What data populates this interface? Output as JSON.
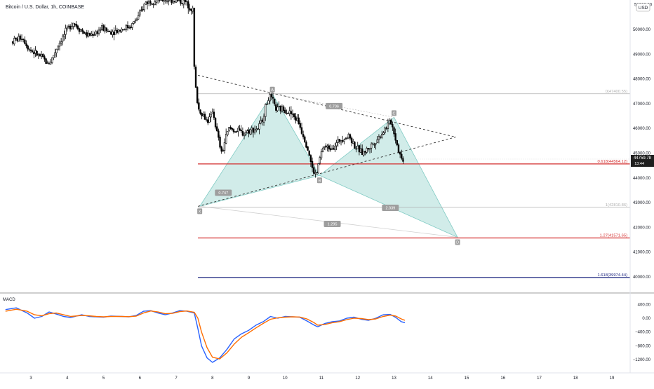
{
  "header": {
    "symbol_title": "Bitcoin / U.S. Dollar, 1h, COINBASE",
    "currency_badge": "USD"
  },
  "indicator": {
    "label": "MACD"
  },
  "colors": {
    "background": "#ffffff",
    "candle": "#000000",
    "pattern_fill": "#b2dfdb",
    "pattern_edge": "#80cbc4",
    "fib_red": "#d32f2f",
    "fib_blue": "#1a237e",
    "fib_gray": "#b0b0b0",
    "macd_line": "#2962ff",
    "signal_line": "#ff6d00",
    "price_badge": "#1f1f1f",
    "point_badge": "#9e9e9e"
  },
  "chart_data": [
    {
      "type": "candlestick",
      "title": "Bitcoin / U.S. Dollar, 1h, COINBASE",
      "x_axis": {
        "ticks": [
          "3",
          "4",
          "5",
          "6",
          "7",
          "8",
          "9",
          "10",
          "11",
          "12",
          "13",
          "14",
          "15",
          "16",
          "17",
          "18",
          "19"
        ]
      },
      "y_axis": {
        "side": "right",
        "ylim": [
          39600,
          51200
        ],
        "ticks": [
          "50000.00",
          "49000.00",
          "48000.00",
          "47000.00",
          "46000.00",
          "45000.00",
          "44000.00",
          "43000.00",
          "42000.00",
          "41000.00",
          "40000.00"
        ],
        "top_partial_label": "51000.00"
      },
      "last_price": {
        "value": "44759.78",
        "countdown": "13:44"
      },
      "series_path": [
        [
          2.5,
          49500
        ],
        [
          2.8,
          49700
        ],
        [
          3.0,
          49200
        ],
        [
          3.2,
          49000
        ],
        [
          3.4,
          48800
        ],
        [
          3.5,
          48600
        ],
        [
          3.6,
          48750
        ],
        [
          3.8,
          49400
        ],
        [
          4.0,
          49900
        ],
        [
          4.2,
          50300
        ],
        [
          4.4,
          50000
        ],
        [
          4.6,
          49750
        ],
        [
          4.8,
          49850
        ],
        [
          5.0,
          50050
        ],
        [
          5.2,
          49900
        ],
        [
          5.4,
          49950
        ],
        [
          5.6,
          50050
        ],
        [
          5.8,
          50150
        ],
        [
          6.0,
          50500
        ],
        [
          6.2,
          51100
        ],
        [
          6.5,
          51200
        ],
        [
          6.9,
          51200
        ],
        [
          7.3,
          51100
        ],
        [
          7.5,
          50800
        ],
        [
          7.55,
          48000
        ],
        [
          7.65,
          46800
        ],
        [
          7.8,
          46500
        ],
        [
          7.9,
          46300
        ],
        [
          8.0,
          46450
        ],
        [
          8.05,
          46800
        ],
        [
          8.1,
          46300
        ],
        [
          8.2,
          45600
        ],
        [
          8.3,
          44950
        ],
        [
          8.4,
          45600
        ],
        [
          8.5,
          46000
        ],
        [
          8.7,
          45900
        ],
        [
          8.9,
          45800
        ],
        [
          9.1,
          45950
        ],
        [
          9.3,
          46000
        ],
        [
          9.4,
          46300
        ],
        [
          9.5,
          46850
        ],
        [
          9.6,
          47300
        ],
        [
          9.7,
          47100
        ],
        [
          9.8,
          46750
        ],
        [
          10.0,
          46800
        ],
        [
          10.2,
          46600
        ],
        [
          10.4,
          46300
        ],
        [
          10.5,
          45900
        ],
        [
          10.6,
          45500
        ],
        [
          10.7,
          45000
        ],
        [
          10.8,
          44300
        ],
        [
          10.9,
          44100
        ],
        [
          11.0,
          44800
        ],
        [
          11.1,
          45300
        ],
        [
          11.2,
          45200
        ],
        [
          11.4,
          45300
        ],
        [
          11.6,
          45600
        ],
        [
          11.8,
          45700
        ],
        [
          12.0,
          45200
        ],
        [
          12.2,
          45000
        ],
        [
          12.4,
          45300
        ],
        [
          12.6,
          45600
        ],
        [
          12.8,
          46000
        ],
        [
          12.95,
          46300
        ],
        [
          13.05,
          45800
        ],
        [
          13.15,
          45200
        ],
        [
          13.25,
          44760
        ]
      ],
      "pattern": {
        "name": "harmonic XABCD",
        "points": [
          {
            "label": "X",
            "date": 7.65,
            "price": 42850
          },
          {
            "label": "A",
            "date": 9.65,
            "price": 47400
          },
          {
            "label": "B",
            "date": 10.95,
            "price": 44100
          },
          {
            "label": "C",
            "date": 13.0,
            "price": 46450
          },
          {
            "label": "D",
            "date": 14.75,
            "price": 41600
          }
        ],
        "ratios": [
          {
            "label": "0.706",
            "date": 11.35,
            "price": 46900
          },
          {
            "label": "0.747",
            "date": 8.3,
            "price": 43400
          },
          {
            "label": "2.039",
            "date": 12.9,
            "price": 42790
          },
          {
            "label": "1.295",
            "date": 11.3,
            "price": 42140
          }
        ]
      },
      "triangle": {
        "upper": [
          [
            7.6,
            48150
          ],
          [
            14.7,
            45650
          ]
        ],
        "lower": [
          [
            7.6,
            42850
          ],
          [
            14.7,
            45650
          ]
        ]
      },
      "fib_levels": [
        {
          "label": "0(47400.55)",
          "price": 47400.55,
          "style": "gray"
        },
        {
          "label": "0.618(44564.12)",
          "price": 44564.12,
          "style": "red"
        },
        {
          "label": "1(42810.86)",
          "price": 42810.86,
          "style": "gray"
        },
        {
          "label": "1.27(41571.65)",
          "price": 41571.65,
          "style": "red"
        },
        {
          "label": "1.618(39974.44)",
          "price": 39974.44,
          "style": "blue"
        }
      ],
      "fib_start_date": 7.6,
      "legend": "none",
      "grid": false
    },
    {
      "type": "line",
      "title": "MACD",
      "y_axis": {
        "ylim": [
          -1300,
          650
        ],
        "ticks": [
          "400.00",
          "0.00",
          "−400.00",
          "−800.00",
          "−1200.00"
        ]
      },
      "series": [
        {
          "name": "MACD",
          "color": "#2962ff",
          "values": [
            [
              2.3,
              250
            ],
            [
              2.6,
              300
            ],
            [
              2.9,
              150
            ],
            [
              3.1,
              0
            ],
            [
              3.3,
              50
            ],
            [
              3.5,
              180
            ],
            [
              3.7,
              120
            ],
            [
              3.9,
              50
            ],
            [
              4.1,
              20
            ],
            [
              4.4,
              100
            ],
            [
              4.6,
              50
            ],
            [
              4.8,
              40
            ],
            [
              5.0,
              30
            ],
            [
              5.2,
              60
            ],
            [
              5.5,
              50
            ],
            [
              5.7,
              40
            ],
            [
              5.9,
              80
            ],
            [
              6.1,
              200
            ],
            [
              6.3,
              220
            ],
            [
              6.5,
              150
            ],
            [
              6.7,
              100
            ],
            [
              6.9,
              150
            ],
            [
              7.1,
              220
            ],
            [
              7.3,
              200
            ],
            [
              7.5,
              150
            ],
            [
              7.6,
              -300
            ],
            [
              7.7,
              -800
            ],
            [
              7.85,
              -1150
            ],
            [
              8.0,
              -1280
            ],
            [
              8.2,
              -1150
            ],
            [
              8.4,
              -900
            ],
            [
              8.6,
              -600
            ],
            [
              8.8,
              -450
            ],
            [
              9.0,
              -350
            ],
            [
              9.2,
              -200
            ],
            [
              9.4,
              -100
            ],
            [
              9.6,
              50
            ],
            [
              9.8,
              0
            ],
            [
              10.0,
              50
            ],
            [
              10.2,
              40
            ],
            [
              10.4,
              30
            ],
            [
              10.6,
              -80
            ],
            [
              10.8,
              -200
            ],
            [
              10.9,
              -250
            ],
            [
              11.1,
              -150
            ],
            [
              11.3,
              -100
            ],
            [
              11.5,
              -80
            ],
            [
              11.7,
              0
            ],
            [
              11.9,
              30
            ],
            [
              12.1,
              -30
            ],
            [
              12.3,
              -60
            ],
            [
              12.5,
              0
            ],
            [
              12.7,
              100
            ],
            [
              12.9,
              110
            ],
            [
              13.05,
              20
            ],
            [
              13.2,
              -100
            ],
            [
              13.3,
              -130
            ]
          ]
        },
        {
          "name": "Signal",
          "color": "#ff6d00",
          "values": [
            [
              2.3,
              200
            ],
            [
              2.6,
              260
            ],
            [
              2.9,
              200
            ],
            [
              3.1,
              100
            ],
            [
              3.3,
              70
            ],
            [
              3.5,
              130
            ],
            [
              3.7,
              150
            ],
            [
              3.9,
              100
            ],
            [
              4.1,
              50
            ],
            [
              4.4,
              80
            ],
            [
              4.6,
              70
            ],
            [
              4.8,
              50
            ],
            [
              5.0,
              40
            ],
            [
              5.2,
              50
            ],
            [
              5.5,
              50
            ],
            [
              5.7,
              45
            ],
            [
              5.9,
              60
            ],
            [
              6.1,
              150
            ],
            [
              6.3,
              210
            ],
            [
              6.5,
              180
            ],
            [
              6.7,
              130
            ],
            [
              6.9,
              140
            ],
            [
              7.1,
              190
            ],
            [
              7.3,
              210
            ],
            [
              7.5,
              170
            ],
            [
              7.6,
              0
            ],
            [
              7.7,
              -400
            ],
            [
              7.85,
              -850
            ],
            [
              8.0,
              -1130
            ],
            [
              8.2,
              -1180
            ],
            [
              8.4,
              -1000
            ],
            [
              8.6,
              -750
            ],
            [
              8.8,
              -550
            ],
            [
              9.0,
              -420
            ],
            [
              9.2,
              -280
            ],
            [
              9.4,
              -150
            ],
            [
              9.6,
              -30
            ],
            [
              9.8,
              10
            ],
            [
              10.0,
              30
            ],
            [
              10.2,
              40
            ],
            [
              10.4,
              35
            ],
            [
              10.6,
              -20
            ],
            [
              10.8,
              -130
            ],
            [
              10.9,
              -200
            ],
            [
              11.1,
              -180
            ],
            [
              11.3,
              -130
            ],
            [
              11.5,
              -100
            ],
            [
              11.7,
              -40
            ],
            [
              11.9,
              0
            ],
            [
              12.1,
              -10
            ],
            [
              12.3,
              -40
            ],
            [
              12.5,
              -20
            ],
            [
              12.7,
              50
            ],
            [
              12.9,
              90
            ],
            [
              13.05,
              60
            ],
            [
              13.2,
              -20
            ],
            [
              13.3,
              -60
            ]
          ]
        }
      ]
    }
  ]
}
